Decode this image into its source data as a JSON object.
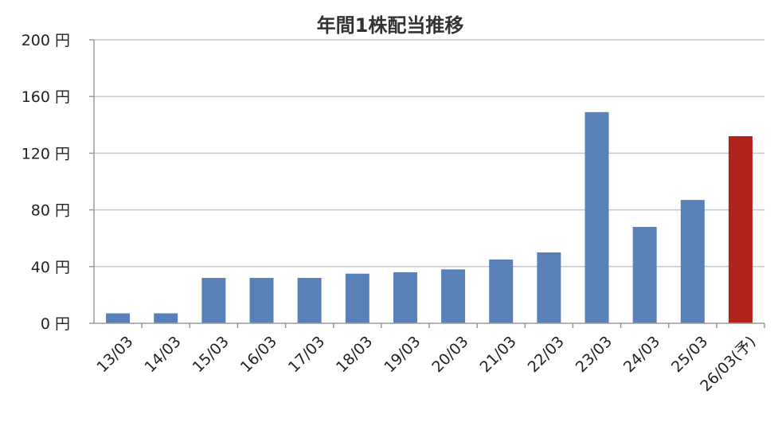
{
  "chart_data": {
    "type": "bar",
    "title": "年間1株配当推移",
    "xlabel": "",
    "ylabel": "",
    "categories": [
      "13/03",
      "14/03",
      "15/03",
      "16/03",
      "17/03",
      "18/03",
      "19/03",
      "20/03",
      "21/03",
      "22/03",
      "23/03",
      "24/03",
      "25/03",
      "26/03(予)"
    ],
    "values": [
      7,
      7,
      32,
      32,
      32,
      35,
      36,
      38,
      45,
      50,
      149,
      68,
      87,
      132
    ],
    "ylim": [
      0,
      200
    ],
    "yticks": [
      0,
      40,
      80,
      120,
      160,
      200
    ],
    "ytick_labels": [
      "0 円",
      "40 円",
      "80 円",
      "120 円",
      "160 円",
      "200 円"
    ],
    "grid": true,
    "legend": "none",
    "colors": {
      "actual": "#5a80b8",
      "forecast": "#b0231b"
    },
    "forecast_index": 13
  }
}
